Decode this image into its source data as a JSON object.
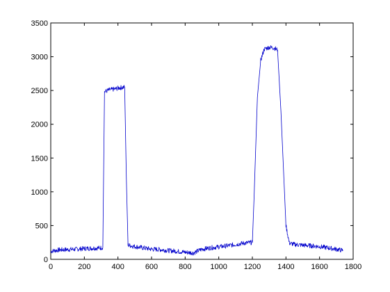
{
  "colors": {
    "background": "#ffffff",
    "axes_frame": "#000000",
    "series_line": "#0000cc"
  },
  "chart_data": {
    "type": "line",
    "title": "",
    "xlabel": "",
    "ylabel": "",
    "xlim": [
      0,
      1800
    ],
    "ylim": [
      0,
      3500
    ],
    "x_ticks": [
      0,
      200,
      400,
      600,
      800,
      1000,
      1200,
      1400,
      1600,
      1800
    ],
    "y_ticks": [
      0,
      500,
      1000,
      1500,
      2000,
      2500,
      3000,
      3500
    ],
    "x_tick_labels": [
      "0",
      "200",
      "400",
      "600",
      "800",
      "1000",
      "1200",
      "1400",
      "1600",
      "1800"
    ],
    "y_tick_labels": [
      "0",
      "500",
      "1000",
      "1500",
      "2000",
      "2500",
      "3000",
      "3500"
    ],
    "grid": false,
    "legend": "none",
    "series": [
      {
        "x": [
          0,
          50,
          100,
          150,
          200,
          250,
          300,
          310,
          320,
          350,
          380,
          410,
          440,
          450,
          460,
          500,
          550,
          600,
          650,
          700,
          750,
          800,
          850,
          900,
          950,
          1000,
          1050,
          1100,
          1150,
          1200,
          1210,
          1230,
          1250,
          1270,
          1300,
          1330,
          1350,
          1370,
          1400,
          1420,
          1450,
          1500,
          1550,
          1600,
          1650,
          1700,
          1740
        ],
        "y": [
          120,
          140,
          145,
          150,
          160,
          165,
          170,
          180,
          2480,
          2510,
          2520,
          2540,
          2550,
          1200,
          210,
          190,
          170,
          150,
          145,
          130,
          120,
          105,
          95,
          150,
          170,
          185,
          200,
          220,
          240,
          250,
          900,
          2400,
          2950,
          3110,
          3140,
          3130,
          3100,
          2200,
          500,
          240,
          220,
          210,
          200,
          190,
          170,
          150,
          130
        ]
      }
    ]
  }
}
